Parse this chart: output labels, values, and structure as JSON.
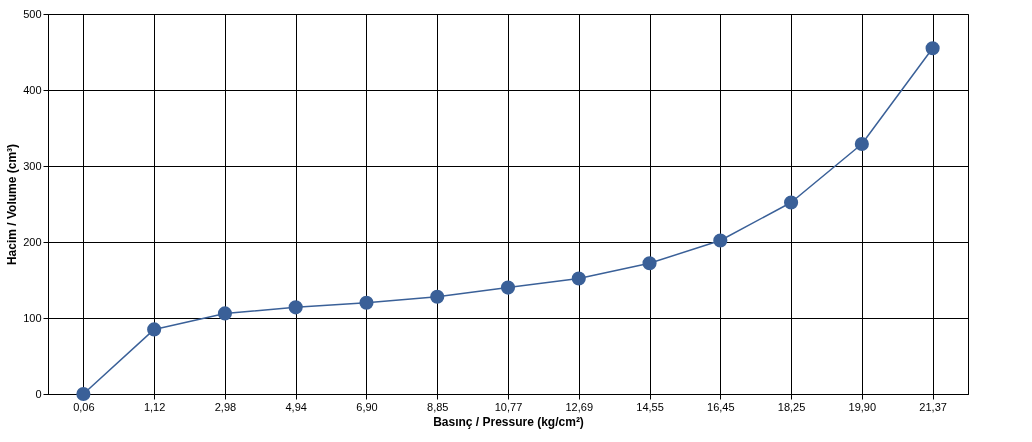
{
  "chart_data": {
    "type": "line",
    "xlabel": "Basınç / Pressure (kg/cm²)",
    "ylabel": "Hacim / Volume (cm³)",
    "categories": [
      "0,06",
      "1,12",
      "2,98",
      "4,94",
      "6,90",
      "8,85",
      "10,77",
      "12,69",
      "14,55",
      "16,45",
      "18,25",
      "19,90",
      "21,37"
    ],
    "series": [
      {
        "color": "#3a6098",
        "values": [
          0,
          85,
          106,
          114,
          120,
          128,
          140,
          152,
          172,
          202,
          252,
          329,
          455
        ]
      }
    ],
    "ylim": [
      0,
      500
    ],
    "yticks": [
      0,
      100,
      200,
      300,
      400,
      500
    ],
    "grid": true,
    "marker": "circle",
    "line_style": "solid"
  }
}
